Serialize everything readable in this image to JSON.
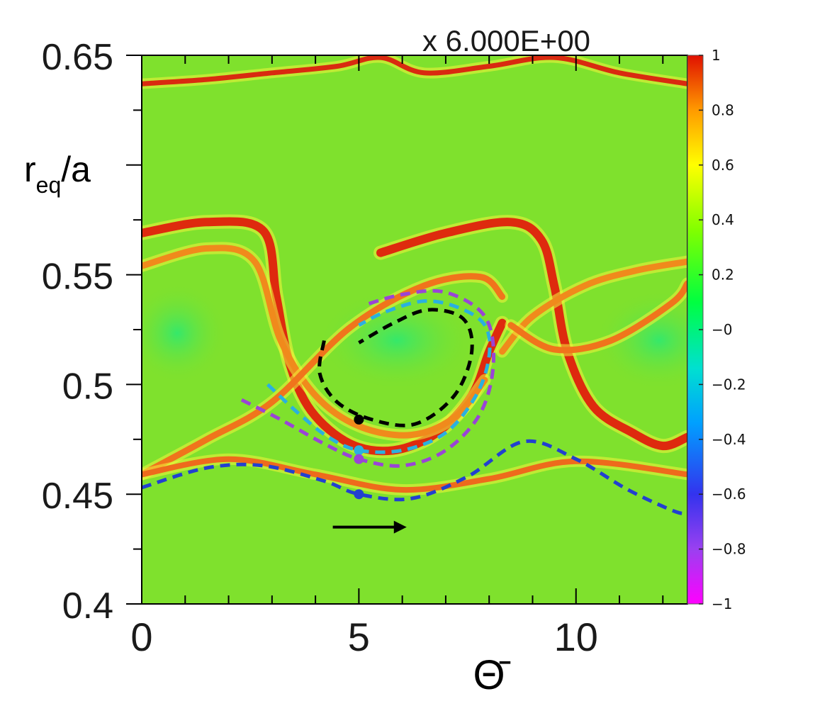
{
  "chart_data": {
    "type": "heatmap",
    "title": "",
    "annotation": "x 6.000E+00",
    "xlabel": "Θ̄",
    "ylabel": "r_eq/a",
    "ylabel_parts": {
      "main": "r",
      "sub": "eq",
      "tail": "/a"
    },
    "xlim": [
      0,
      12.566
    ],
    "ylim": [
      0.4,
      0.65
    ],
    "x_ticks": [
      0,
      5,
      10
    ],
    "x_tick_labels": [
      "0",
      "5",
      "10"
    ],
    "y_ticks": [
      0.4,
      0.45,
      0.5,
      0.55,
      0.65
    ],
    "y_tick_labels": [
      "0.4",
      "0.45",
      "0.5",
      "0.55",
      "0.65"
    ],
    "colorbar": {
      "range": [
        -1,
        1
      ],
      "ticks": [
        1,
        0.8,
        0.6,
        0.4,
        0.2,
        0,
        -0.2,
        -0.4,
        -0.6,
        -0.8,
        -1
      ],
      "tick_labels": [
        "1",
        "0.8",
        "0.6",
        "0.4",
        "0.2",
        "−0",
        "−0.2",
        "−0.4",
        "−0.6",
        "−0.8",
        "−1"
      ],
      "colors": [
        "#ff00ff",
        "#3333ee",
        "#00a0ff",
        "#00e0d0",
        "#00ff40",
        "#80ff00",
        "#ffff00",
        "#ff9a00",
        "#ff3b00",
        "#e01000"
      ]
    },
    "background_color": "#7fe12d",
    "separatrix_curves": [
      {
        "name": "upper-band",
        "color": "#d92a10",
        "width": 7,
        "points": [
          [
            0,
            0.637
          ],
          [
            1.5,
            0.639
          ],
          [
            3,
            0.642
          ],
          [
            4.5,
            0.645
          ],
          [
            5.5,
            0.649
          ],
          [
            6.5,
            0.642
          ],
          [
            8,
            0.645
          ],
          [
            9.5,
            0.649
          ],
          [
            11,
            0.642
          ],
          [
            12.566,
            0.637
          ]
        ]
      },
      {
        "name": "red-loop-1",
        "color": "#de2a0e",
        "width": 12,
        "points": [
          [
            0,
            0.569
          ],
          [
            1.5,
            0.574
          ],
          [
            2.8,
            0.57
          ],
          [
            3.1,
            0.54
          ],
          [
            3.4,
            0.51
          ],
          [
            3.9,
            0.488
          ],
          [
            4.8,
            0.473
          ],
          [
            5.8,
            0.47
          ],
          [
            6.8,
            0.478
          ],
          [
            7.6,
            0.495
          ],
          [
            8.0,
            0.515
          ],
          [
            8.3,
            0.528
          ]
        ]
      },
      {
        "name": "red-loop-2",
        "color": "#de2a0e",
        "width": 12,
        "points": [
          [
            5.5,
            0.56
          ],
          [
            7.0,
            0.569
          ],
          [
            8.5,
            0.574
          ],
          [
            9.2,
            0.566
          ],
          [
            9.5,
            0.545
          ],
          [
            9.8,
            0.515
          ],
          [
            10.4,
            0.49
          ],
          [
            11.3,
            0.478
          ],
          [
            12.0,
            0.472
          ],
          [
            12.566,
            0.476
          ]
        ]
      },
      {
        "name": "orange-band-1",
        "color": "#f08a1c",
        "width": 9,
        "points": [
          [
            0,
            0.554
          ],
          [
            1.5,
            0.562
          ],
          [
            2.6,
            0.556
          ],
          [
            3.2,
            0.52
          ],
          [
            4.0,
            0.495
          ],
          [
            5.0,
            0.481
          ],
          [
            6.2,
            0.477
          ],
          [
            7.2,
            0.485
          ],
          [
            7.9,
            0.502
          ]
        ]
      },
      {
        "name": "orange-band-2",
        "color": "#f08a1c",
        "width": 9,
        "points": [
          [
            8.3,
            0.515
          ],
          [
            9.0,
            0.531
          ],
          [
            10.2,
            0.545
          ],
          [
            11.4,
            0.552
          ],
          [
            12.566,
            0.556
          ]
        ]
      },
      {
        "name": "orange-lower",
        "color": "#f0741c",
        "width": 9,
        "points": [
          [
            0,
            0.459
          ],
          [
            1.5,
            0.475
          ],
          [
            3.0,
            0.492
          ],
          [
            4.8,
            0.526
          ],
          [
            6.5,
            0.545
          ],
          [
            7.8,
            0.549
          ],
          [
            8.3,
            0.54
          ]
        ]
      },
      {
        "name": "orange-lower-2",
        "color": "#f0741c",
        "width": 9,
        "points": [
          [
            8.5,
            0.527
          ],
          [
            9.5,
            0.516
          ],
          [
            10.8,
            0.52
          ],
          [
            12.2,
            0.537
          ],
          [
            12.566,
            0.546
          ]
        ]
      },
      {
        "name": "bottom-band",
        "color": "#ee6a1c",
        "width": 8,
        "points": [
          [
            0,
            0.459
          ],
          [
            2,
            0.466
          ],
          [
            4,
            0.459
          ],
          [
            6,
            0.452
          ],
          [
            8,
            0.457
          ],
          [
            10,
            0.465
          ],
          [
            12.566,
            0.459
          ]
        ]
      }
    ],
    "trajectories": [
      {
        "name": "black",
        "color": "#000000",
        "points": [
          [
            4.2,
            0.52
          ],
          [
            4.1,
            0.505
          ],
          [
            4.5,
            0.492
          ],
          [
            5.3,
            0.484
          ],
          [
            6.3,
            0.482
          ],
          [
            7.2,
            0.495
          ],
          [
            7.6,
            0.515
          ],
          [
            7.4,
            0.53
          ],
          [
            6.6,
            0.534
          ],
          [
            5.8,
            0.528
          ],
          [
            5.0,
            0.519
          ]
        ],
        "marker": [
          5.0,
          0.484
        ]
      },
      {
        "name": "cyan",
        "color": "#2ab0e0",
        "points": [
          [
            2.9,
            0.5
          ],
          [
            3.6,
            0.487
          ],
          [
            4.3,
            0.476
          ],
          [
            5.0,
            0.47
          ],
          [
            6.0,
            0.47
          ],
          [
            7.0,
            0.478
          ],
          [
            7.7,
            0.495
          ],
          [
            8.0,
            0.513
          ],
          [
            7.9,
            0.527
          ],
          [
            7.3,
            0.535
          ],
          [
            6.5,
            0.538
          ],
          [
            5.6,
            0.533
          ],
          [
            5.0,
            0.527
          ]
        ],
        "marker": [
          5.0,
          0.47
        ]
      },
      {
        "name": "purple",
        "color": "#9a44d6",
        "points": [
          [
            2.3,
            0.493
          ],
          [
            3.2,
            0.484
          ],
          [
            4.2,
            0.473
          ],
          [
            5.0,
            0.466
          ],
          [
            6.0,
            0.463
          ],
          [
            7.0,
            0.47
          ],
          [
            7.8,
            0.487
          ],
          [
            8.1,
            0.51
          ],
          [
            7.9,
            0.531
          ],
          [
            7.0,
            0.542
          ],
          [
            6.0,
            0.541
          ],
          [
            5.1,
            0.536
          ]
        ],
        "marker": [
          5.0,
          0.466
        ]
      },
      {
        "name": "blue",
        "color": "#2240d0",
        "points": [
          [
            0,
            0.453
          ],
          [
            1.5,
            0.462
          ],
          [
            2.8,
            0.463
          ],
          [
            4.2,
            0.456
          ],
          [
            5.0,
            0.45
          ],
          [
            6.2,
            0.448
          ],
          [
            7.5,
            0.458
          ],
          [
            8.8,
            0.474
          ],
          [
            10.0,
            0.466
          ],
          [
            11.2,
            0.452
          ],
          [
            12.3,
            0.442
          ],
          [
            12.566,
            0.442
          ]
        ],
        "marker": [
          5.0,
          0.45
        ]
      }
    ],
    "arrow": {
      "from": [
        4.4,
        0.435
      ],
      "to": [
        6.1,
        0.435
      ],
      "color": "#000000"
    }
  }
}
